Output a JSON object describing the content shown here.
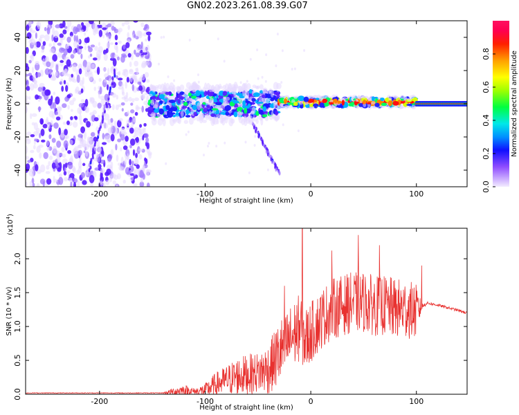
{
  "title": "GN02.2023.261.08.39.G07",
  "colors": {
    "snr_line": "#e8312f",
    "spectrum_low": "#c8b8ff",
    "spectrum_mid": "#3020ff",
    "spectrum_high": "#ff0000"
  },
  "chart_data": [
    {
      "type": "heatmap",
      "xlabel": "Height of straight line (km)",
      "ylabel": "Frequency (Hz)",
      "xlim": [
        -270,
        148
      ],
      "ylim": [
        -50,
        50
      ],
      "x_ticks": [
        -200,
        -100,
        0,
        100
      ],
      "y_ticks": [
        -40,
        -20,
        0,
        20,
        40
      ],
      "colorbar": {
        "label": "Normalized spectral amplitude",
        "range": [
          0,
          1
        ],
        "ticks": [
          "0.0",
          "0.2",
          "0.4",
          "0.6",
          "0.8"
        ]
      },
      "regions": [
        {
          "x_range": [
            -270,
            -152
          ],
          "freq_range": [
            -50,
            50
          ],
          "amplitude": "low"
        },
        {
          "x_range": [
            -152,
            -30
          ],
          "center_freq": 0,
          "half_width": 10,
          "amplitude": "medium"
        },
        {
          "x_range": [
            -30,
            100
          ],
          "center_freq": 1,
          "half_width": 3,
          "amplitude": "high"
        },
        {
          "x_range": [
            100,
            148
          ],
          "center_freq": 0,
          "half_width": 1,
          "amplitude": "high"
        }
      ],
      "streaks": [
        {
          "x": [
            -210,
            -185
          ],
          "freq": [
            -40,
            20
          ]
        },
        {
          "x": [
            -55,
            -30
          ],
          "freq": [
            -12,
            -42
          ]
        }
      ]
    },
    {
      "type": "line",
      "xlabel": "Height of straight line (km)",
      "ylabel": "SNR (10 * v/v)",
      "scale_label": "(x10",
      "scale_exponent": "4",
      "scale_close": ")",
      "xlim": [
        -270,
        148
      ],
      "ylim": [
        0,
        2.45
      ],
      "x_ticks": [
        -200,
        -100,
        0,
        100
      ],
      "y_ticks": [
        "0.0",
        "0.5",
        "1.0",
        "1.5",
        "2.0"
      ],
      "y_tick_values": [
        0,
        0.5,
        1.0,
        1.5,
        2.0
      ],
      "series": [
        {
          "envelope_x": [
            -270,
            -140,
            -130,
            -120,
            -110,
            -100,
            -90,
            -80,
            -70,
            -60,
            -50,
            -40,
            -30,
            -20,
            -10,
            -5,
            0,
            10,
            20,
            30,
            40,
            50,
            60,
            70,
            80,
            90,
            100,
            105,
            110,
            120,
            130,
            140,
            148
          ],
          "envelope_y": [
            0.02,
            0.02,
            0.05,
            0.08,
            0.05,
            0.08,
            0.18,
            0.25,
            0.32,
            0.35,
            0.38,
            0.45,
            0.7,
            0.9,
            1.1,
            0.9,
            1.0,
            1.2,
            1.35,
            1.4,
            1.45,
            1.45,
            1.4,
            1.4,
            1.35,
            1.35,
            1.3,
            1.3,
            1.35,
            1.32,
            1.28,
            1.24,
            1.2
          ],
          "noise_y": [
            0.005,
            0.005,
            0.06,
            0.08,
            0.05,
            0.1,
            0.18,
            0.22,
            0.28,
            0.3,
            0.3,
            0.38,
            0.5,
            0.5,
            0.5,
            0.5,
            0.45,
            0.45,
            0.45,
            0.45,
            0.45,
            0.45,
            0.45,
            0.45,
            0.45,
            0.45,
            0.4,
            0.05,
            0.02,
            0.02,
            0.02,
            0.02,
            0.02
          ],
          "spikes": [
            {
              "x": -8,
              "y": 2.45
            },
            {
              "x": -25,
              "y": 1.6
            },
            {
              "x": 45,
              "y": 2.35
            },
            {
              "x": 20,
              "y": 2.12
            },
            {
              "x": 65,
              "y": 2.2
            },
            {
              "x": 105,
              "y": 1.9
            }
          ]
        }
      ]
    }
  ]
}
